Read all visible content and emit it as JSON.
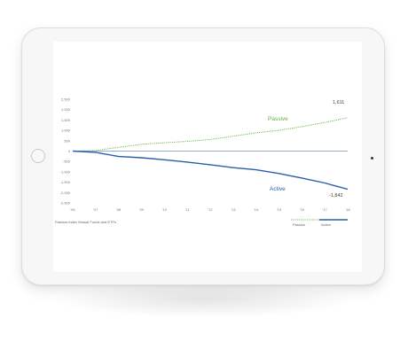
{
  "chart_data": {
    "type": "line",
    "x": [
      "'06",
      "'07",
      "'08",
      "'09",
      "'10",
      "'11",
      "'12",
      "'13",
      "'14",
      "'15",
      "'16",
      "'17",
      "'18"
    ],
    "y_ticks": [
      "2,500",
      "2,000",
      "1,500",
      "1,000",
      "500",
      "0",
      "-500",
      "-1,000",
      "-1,500",
      "-2,000",
      "-2,500"
    ],
    "ylim": [
      -2500,
      2500
    ],
    "series": [
      {
        "name": "Passive",
        "color": "#5fae3f",
        "style": "dotted",
        "values": [
          0,
          30,
          180,
          330,
          400,
          470,
          560,
          720,
          880,
          1000,
          1180,
          1380,
          1611
        ],
        "end_label": "1,611"
      },
      {
        "name": "Active",
        "color": "#2a5ea8",
        "style": "solid",
        "values": [
          0,
          -60,
          -260,
          -320,
          -420,
          -530,
          -660,
          -800,
          -900,
          -1080,
          -1300,
          -1540,
          -1842
        ],
        "end_label": "-1,842"
      }
    ],
    "footnote": "Passive-Index Mutual Funds and ETFs",
    "legend": [
      {
        "name": "Passive",
        "color": "#5fae3f",
        "style": "dotted"
      },
      {
        "name": "Active",
        "color": "#2a5ea8",
        "style": "solid"
      }
    ],
    "legend_position": "bottom-right",
    "zero_line_color": "#2a5ea8"
  }
}
